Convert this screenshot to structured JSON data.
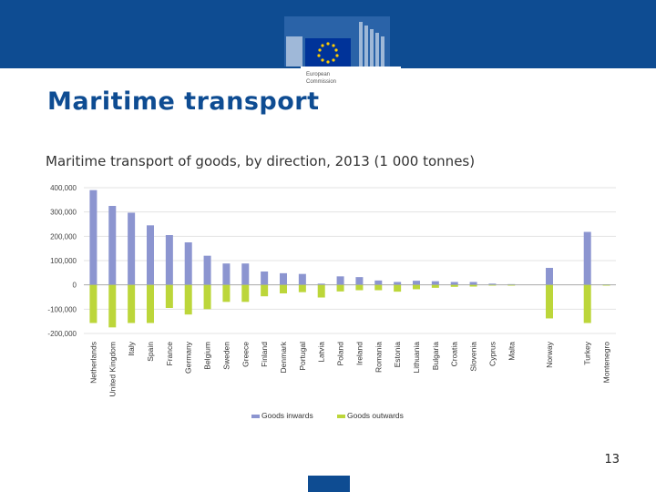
{
  "slide": {
    "title": "Maritime transport",
    "page_number": "13",
    "logo_text_1": "European",
    "logo_text_2": "Commission"
  },
  "colors": {
    "header_band": "#0e4c92",
    "title": "#0e4c92",
    "inwards": "#8c95d0",
    "outwards": "#bcd63a"
  },
  "chart_data": {
    "type": "bar",
    "title": "Maritime transport of goods, by direction, 2013 (1 000 tonnes)",
    "xlabel": "",
    "ylabel": "",
    "ylim": [
      -200000,
      400000
    ],
    "ytick_values": [
      400000,
      300000,
      200000,
      100000,
      0,
      -100000,
      -200000
    ],
    "ytick_labels": [
      "400,000",
      "300,000",
      "200,000",
      "100,000",
      "0",
      "-100,000",
      "-200,000"
    ],
    "grid": true,
    "legend_position": "bottom",
    "categories": [
      "Netherlands",
      "United Kingdom",
      "Italy",
      "Spain",
      "France",
      "Germany",
      "Belgium",
      "Sweden",
      "Greece",
      "Finland",
      "Denmark",
      "Portugal",
      "Latvia",
      "Poland",
      "Ireland",
      "Romania",
      "Estonia",
      "Lithuania",
      "Bulgaria",
      "Croatia",
      "Slovenia",
      "Cyprus",
      "Malta",
      "",
      "Norway",
      "",
      "Turkey",
      "Montenegro"
    ],
    "series": [
      {
        "name": "Goods inwards",
        "color": "#8c95d0",
        "values": [
          390000,
          325000,
          297000,
          245000,
          205000,
          175000,
          120000,
          88000,
          88000,
          55000,
          48000,
          45000,
          5000,
          35000,
          32000,
          18000,
          12000,
          17000,
          15000,
          12000,
          12000,
          5000,
          3000,
          null,
          70000,
          null,
          218000,
          2000
        ]
      },
      {
        "name": "Goods outwards",
        "color": "#bcd63a",
        "values": [
          -157000,
          -175000,
          -157000,
          -157000,
          -95000,
          -122000,
          -100000,
          -70000,
          -70000,
          -47000,
          -35000,
          -30000,
          -52000,
          -27000,
          -22000,
          -22000,
          -28000,
          -18000,
          -12000,
          -8000,
          -7000,
          -2000,
          -2000,
          null,
          -138000,
          null,
          -157000,
          -2000
        ]
      }
    ]
  }
}
